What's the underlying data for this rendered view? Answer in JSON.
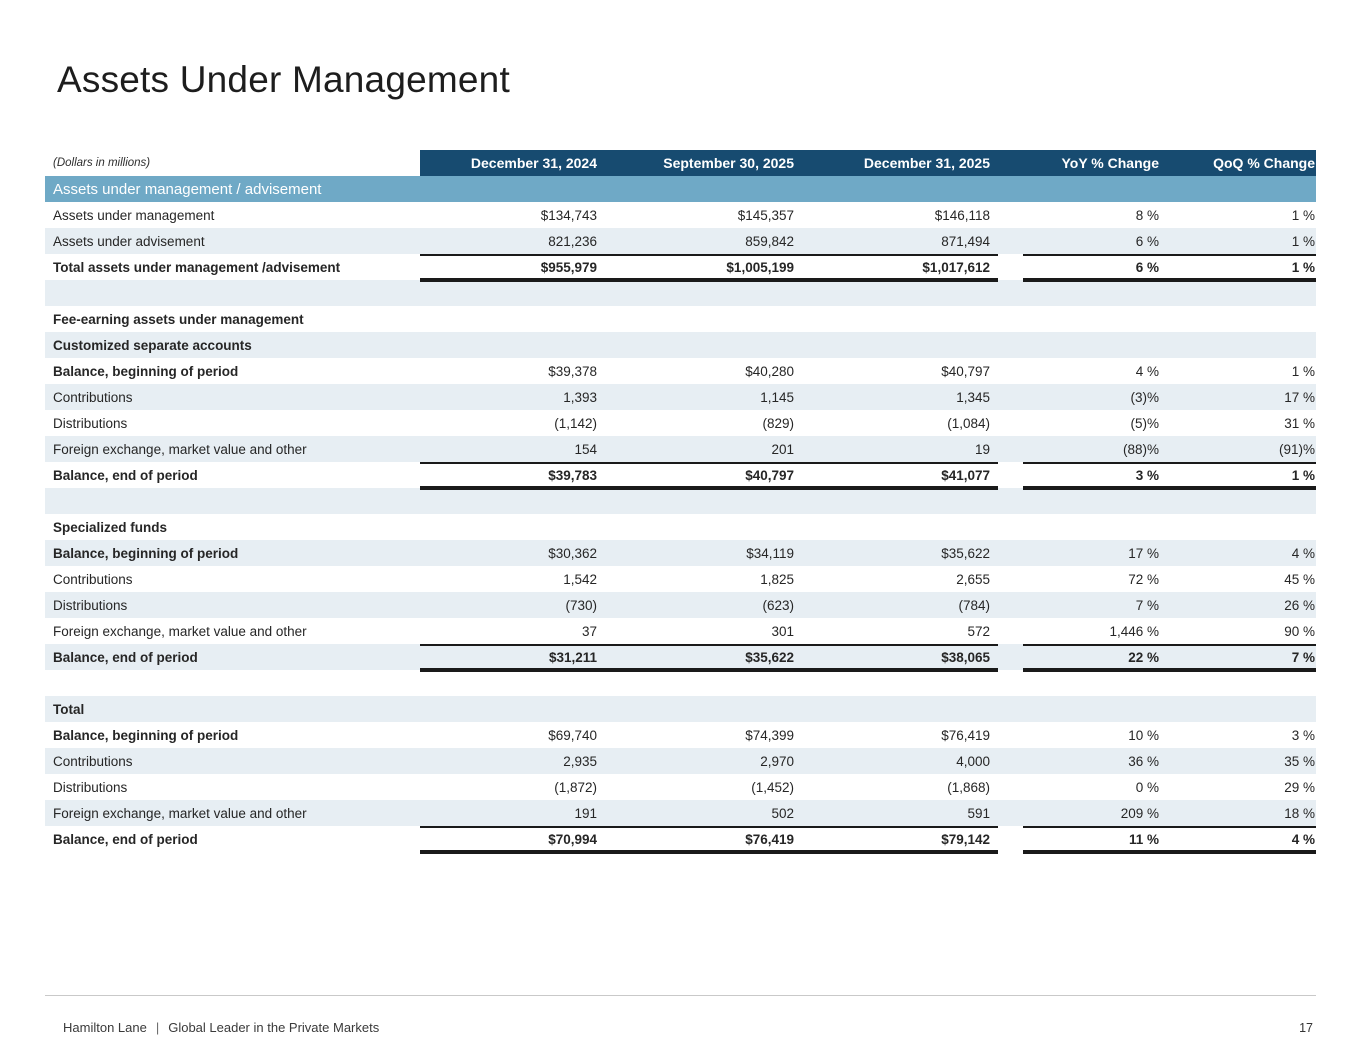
{
  "page": {
    "title": "Assets Under Management",
    "page_number": "17"
  },
  "footer": {
    "company": "Hamilton Lane",
    "separator": "|",
    "tagline": "Global Leader in the Private Markets"
  },
  "colors": {
    "header_bg": "#174b70",
    "band_bg": "#6fa9c6",
    "stripe_bg": "#e7eef3",
    "rule": "#1a1a1a",
    "footer_rule": "#c9c9c9"
  },
  "table": {
    "units_note": "(Dollars in millions)",
    "columns": [
      "December 31, 2024",
      "September 30, 2025",
      "December 31, 2025",
      "YoY % Change",
      "QoQ % Change"
    ],
    "band_title": "Assets under management / advisement",
    "rows": [
      {
        "kind": "data",
        "shade": "white",
        "label": "Assets under management",
        "cells": [
          "$134,743",
          "$145,357",
          "$146,118",
          "8 %",
          "1 %"
        ]
      },
      {
        "kind": "data",
        "shade": "light",
        "label": "Assets under advisement",
        "cells": [
          "821,236",
          "859,842",
          "871,494",
          "6 %",
          "1 %"
        ]
      },
      {
        "kind": "data",
        "shade": "white",
        "label": "Total assets under management /advisement",
        "bold_label": true,
        "bold_values": true,
        "rule_top": true,
        "rule_double": true,
        "cells": [
          "$955,979",
          "$1,005,199",
          "$1,017,612",
          "6 %",
          "1 %"
        ]
      },
      {
        "kind": "spacer",
        "shade": "light",
        "label": "",
        "cells": [
          "",
          "",
          "",
          "",
          ""
        ]
      },
      {
        "kind": "section",
        "shade": "white",
        "label": "Fee-earning assets under management",
        "bold_label": true,
        "cells": [
          "",
          "",
          "",
          "",
          ""
        ]
      },
      {
        "kind": "section",
        "shade": "light",
        "label": "Customized separate accounts",
        "bold_label": true,
        "cells": [
          "",
          "",
          "",
          "",
          ""
        ]
      },
      {
        "kind": "data",
        "shade": "white",
        "label": "Balance, beginning of period",
        "bold_label": true,
        "cells": [
          "$39,378",
          "$40,280",
          "$40,797",
          "4 %",
          "1 %"
        ]
      },
      {
        "kind": "data",
        "shade": "light",
        "label": "Contributions",
        "cells": [
          "1,393",
          "1,145",
          "1,345",
          "(3)%",
          "17 %"
        ]
      },
      {
        "kind": "data",
        "shade": "white",
        "label": "Distributions",
        "cells": [
          "(1,142)",
          "(829)",
          "(1,084)",
          "(5)%",
          "31 %"
        ]
      },
      {
        "kind": "data",
        "shade": "light",
        "label": "Foreign exchange, market value and other",
        "cells": [
          "154",
          "201",
          "19",
          "(88)%",
          "(91)%"
        ]
      },
      {
        "kind": "data",
        "shade": "white",
        "label": "Balance, end of period",
        "bold_label": true,
        "bold_values": true,
        "rule_top": true,
        "rule_double": true,
        "cells": [
          "$39,783",
          "$40,797",
          "$41,077",
          "3 %",
          "1 %"
        ]
      },
      {
        "kind": "spacer",
        "shade": "light",
        "label": "",
        "cells": [
          "",
          "",
          "",
          "",
          ""
        ]
      },
      {
        "kind": "section",
        "shade": "white",
        "label": "Specialized funds",
        "bold_label": true,
        "cells": [
          "",
          "",
          "",
          "",
          ""
        ]
      },
      {
        "kind": "data",
        "shade": "light",
        "label": "Balance, beginning of period",
        "bold_label": true,
        "cells": [
          "$30,362",
          "$34,119",
          "$35,622",
          "17 %",
          "4 %"
        ]
      },
      {
        "kind": "data",
        "shade": "white",
        "label": "Contributions",
        "cells": [
          "1,542",
          "1,825",
          "2,655",
          "72 %",
          "45 %"
        ]
      },
      {
        "kind": "data",
        "shade": "light",
        "label": "Distributions",
        "cells": [
          "(730)",
          "(623)",
          "(784)",
          "7 %",
          "26 %"
        ]
      },
      {
        "kind": "data",
        "shade": "white",
        "label": "Foreign exchange, market value and other",
        "cells": [
          "37",
          "301",
          "572",
          "1,446 %",
          "90 %"
        ]
      },
      {
        "kind": "data",
        "shade": "light",
        "label": "Balance, end of period",
        "bold_label": true,
        "bold_values": true,
        "rule_top": true,
        "rule_double": true,
        "cells": [
          "$31,211",
          "$35,622",
          "$38,065",
          "22 %",
          "7 %"
        ]
      },
      {
        "kind": "spacer",
        "shade": "white",
        "label": "",
        "cells": [
          "",
          "",
          "",
          "",
          ""
        ]
      },
      {
        "kind": "section",
        "shade": "light",
        "label": "Total",
        "bold_label": true,
        "cells": [
          "",
          "",
          "",
          "",
          ""
        ]
      },
      {
        "kind": "data",
        "shade": "white",
        "label": "Balance, beginning of period",
        "bold_label": true,
        "cells": [
          "$69,740",
          "$74,399",
          "$76,419",
          "10 %",
          "3 %"
        ]
      },
      {
        "kind": "data",
        "shade": "light",
        "label": "Contributions",
        "cells": [
          "2,935",
          "2,970",
          "4,000",
          "36 %",
          "35 %"
        ]
      },
      {
        "kind": "data",
        "shade": "white",
        "label": "Distributions",
        "cells": [
          "(1,872)",
          "(1,452)",
          "(1,868)",
          "0 %",
          "29 %"
        ]
      },
      {
        "kind": "data",
        "shade": "light",
        "label": "Foreign exchange, market value and other",
        "cells": [
          "191",
          "502",
          "591",
          "209 %",
          "18 %"
        ]
      },
      {
        "kind": "data",
        "shade": "white",
        "label": "Balance, end of period",
        "bold_label": true,
        "bold_values": true,
        "rule_top": true,
        "rule_double": true,
        "cells": [
          "$70,994",
          "$76,419",
          "$79,142",
          "11 %",
          "4 %"
        ]
      }
    ]
  }
}
